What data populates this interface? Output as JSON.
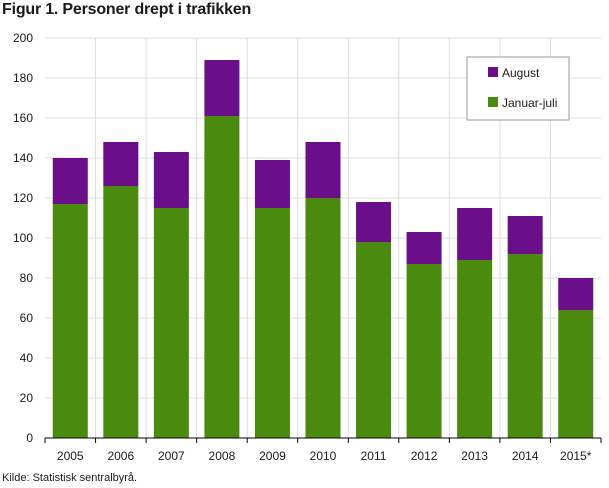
{
  "title": "Figur 1. Personer drept i trafikken",
  "source": "Kilde: Statistisk sentralbyrå.",
  "colors": {
    "august": "#6a0e8a",
    "januar_juli": "#4a8a0e",
    "grid": "#dddddd",
    "legend_border": "#9a9a9a"
  },
  "chart_data": {
    "type": "bar",
    "stacked": true,
    "categories": [
      "2005",
      "2006",
      "2007",
      "2008",
      "2009",
      "2010",
      "2011",
      "2012",
      "2013",
      "2014",
      "2015*"
    ],
    "series": [
      {
        "name": "Januar-juli",
        "values": [
          117,
          126,
          115,
          161,
          115,
          120,
          98,
          87,
          89,
          92,
          64
        ]
      },
      {
        "name": "August",
        "values": [
          23,
          22,
          28,
          28,
          24,
          28,
          20,
          16,
          26,
          19,
          16
        ]
      }
    ],
    "ylim": [
      0,
      200
    ],
    "yticks": [
      0,
      20,
      40,
      60,
      80,
      100,
      120,
      140,
      160,
      180,
      200
    ],
    "legend": [
      "August",
      "Januar-juli"
    ],
    "legend_position": "top-right",
    "grid": true
  }
}
